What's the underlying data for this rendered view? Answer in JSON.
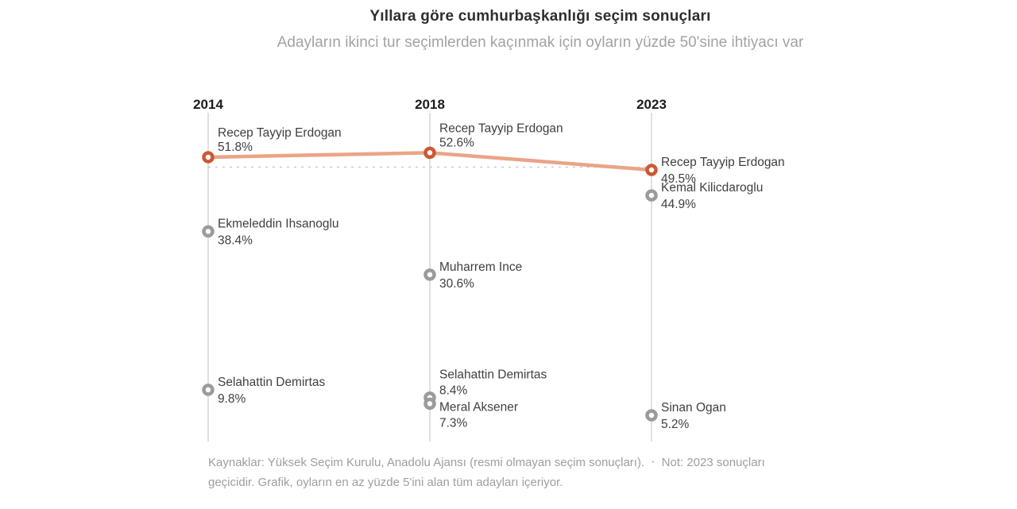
{
  "header": {
    "title": "Yıllara göre cumhurbaşkanlığı seçim sonuçları",
    "subtitle": "Adayların ikinci tur seçimlerden kaçınmak için oyların yüzde 50'sine ihtiyacı var"
  },
  "chart_data": {
    "type": "line",
    "title": "Yıllara göre cumhurbaşkanlığı seçim sonuçları",
    "xlabel": "",
    "ylabel": "",
    "x_categories": [
      "2014",
      "2018",
      "2023"
    ],
    "ylim": [
      0,
      60
    ],
    "grid": false,
    "legend": false,
    "threshold": {
      "value": 50,
      "style": "dashed"
    },
    "winner_series": {
      "name": "Recep Tayyip Erdogan",
      "values": [
        51.8,
        52.6,
        49.5
      ]
    },
    "columns": [
      {
        "year": "2014",
        "candidates": [
          {
            "name": "Recep Tayyip Erdogan",
            "pct": 51.8,
            "label": "51.8%",
            "highlight": true,
            "label_pos": "above"
          },
          {
            "name": "Ekmeleddin Ihsanoglu",
            "pct": 38.4,
            "label": "38.4%",
            "highlight": false,
            "label_pos": "right"
          },
          {
            "name": "Selahattin Demirtas",
            "pct": 9.8,
            "label": "9.8%",
            "highlight": false,
            "label_pos": "right"
          }
        ]
      },
      {
        "year": "2018",
        "candidates": [
          {
            "name": "Recep Tayyip Erdogan",
            "pct": 52.6,
            "label": "52.6%",
            "highlight": true,
            "label_pos": "above"
          },
          {
            "name": "Muharrem Ince",
            "pct": 30.6,
            "label": "30.6%",
            "highlight": false,
            "label_pos": "right"
          },
          {
            "name": "Selahattin Demirtas",
            "pct": 8.4,
            "label": "8.4%",
            "highlight": false,
            "label_pos": "upper"
          },
          {
            "name": "Meral Aksener",
            "pct": 7.3,
            "label": "7.3%",
            "highlight": false,
            "label_pos": "lower"
          }
        ]
      },
      {
        "year": "2023",
        "candidates": [
          {
            "name": "Recep Tayyip Erdogan",
            "pct": 49.5,
            "label": "49.5%",
            "highlight": true,
            "label_pos": "right"
          },
          {
            "name": "Kemal Kilicdaroglu",
            "pct": 44.9,
            "label": "44.9%",
            "highlight": false,
            "label_pos": "right"
          },
          {
            "name": "Sinan Ogan",
            "pct": 5.2,
            "label": "5.2%",
            "highlight": false,
            "label_pos": "right"
          }
        ]
      }
    ],
    "colors": {
      "winner_ring": "#cc5833",
      "other_ring": "#9b9b9b",
      "trend_line": "#eba487",
      "threshold_line": "#cccccc",
      "axis_line": "#d6d6d6"
    }
  },
  "footer": {
    "line1_sources": "Kaynaklar: Yüksek Seçim Kurulu, Anadolu Ajansı (resmi olmayan seçim sonuçları).",
    "separator": "•",
    "line1_note_start": "Not: 2023 sonuçları",
    "line2": "geçicidir. Grafik, oyların en az yüzde 5'ini alan tüm adayları içeriyor."
  }
}
